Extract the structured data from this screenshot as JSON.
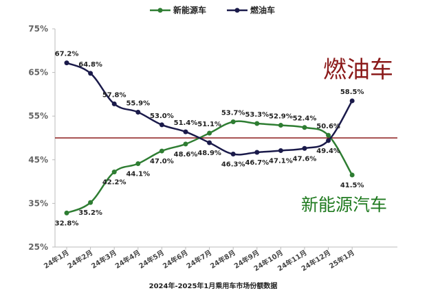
{
  "chart_data": {
    "type": "line",
    "categories": [
      "24年1月",
      "24年2月",
      "24年3月",
      "24年4月",
      "24年5月",
      "24年6月",
      "24年7月",
      "24年8月",
      "24年9月",
      "24年10月",
      "24年11月",
      "24年12月",
      "25年1月"
    ],
    "series": [
      {
        "name": "新能源车",
        "values": [
          32.8,
          35.2,
          42.2,
          44.1,
          47.0,
          48.6,
          51.1,
          53.7,
          53.3,
          52.9,
          52.4,
          50.6,
          41.5
        ],
        "labels": [
          "32.8%",
          "35.2%",
          "42.2%",
          "44.1%",
          "47.0%",
          "48.6%",
          "51.1%",
          "53.7%",
          "53.3%",
          "52.9%",
          "52.4%",
          "50.6%",
          "41.5%"
        ],
        "color": "#2e7d32"
      },
      {
        "name": "燃油车",
        "values": [
          67.2,
          64.8,
          57.8,
          55.9,
          53.0,
          51.4,
          48.9,
          46.3,
          46.7,
          47.1,
          47.6,
          49.4,
          58.5
        ],
        "labels": [
          "67.2%",
          "64.8%",
          "57.8%",
          "55.9%",
          "53.0%",
          "51.4%",
          "48.9%",
          "46.3%",
          "46.7%",
          "47.1%",
          "47.6%",
          "49.4%",
          "58.5%"
        ],
        "color": "#1a1a4a"
      }
    ],
    "yticks": [
      "25%",
      "35%",
      "45%",
      "55%",
      "65%",
      "75%"
    ],
    "ylim": [
      25,
      75
    ],
    "reference_line": 50,
    "reference_color": "#8b1a1a",
    "grid": false,
    "legend": "top-center",
    "caption": "2024年-2025年1月乘用车市场份额数据",
    "annotations": [
      {
        "text": "燃油车",
        "color": "#8b1a1a"
      },
      {
        "text": "新能源汽车",
        "color": "#1f7a1f"
      }
    ]
  }
}
